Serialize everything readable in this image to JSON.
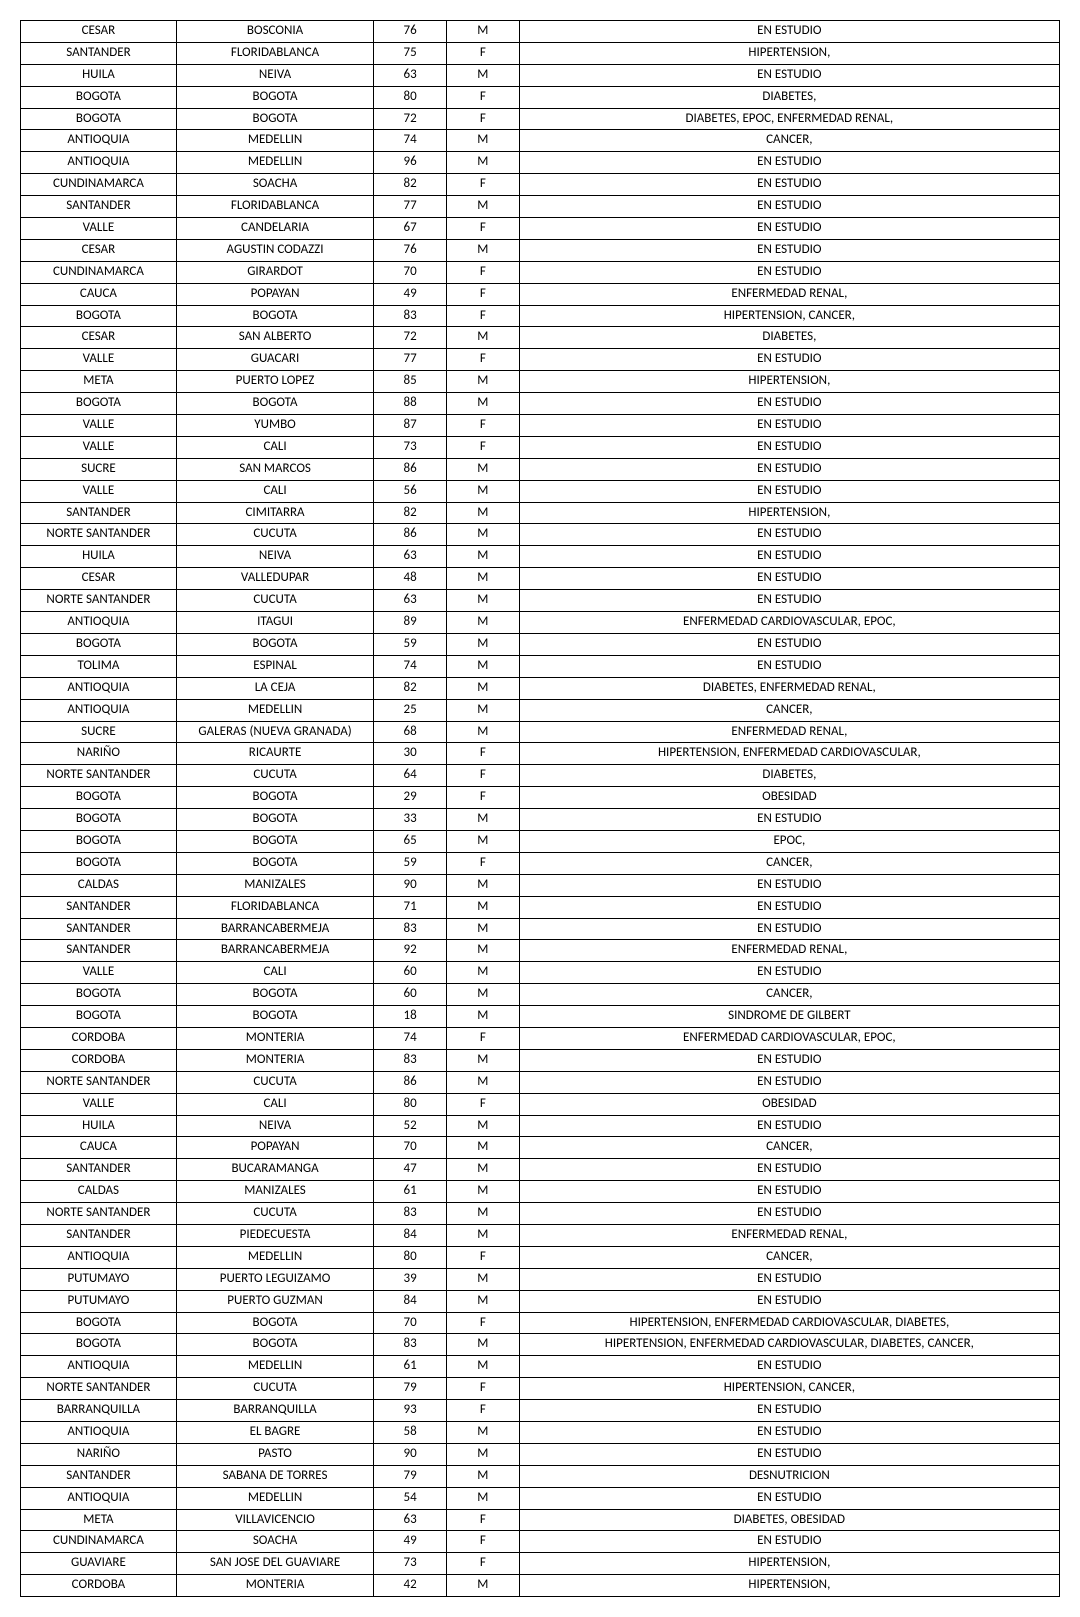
{
  "table": {
    "background_color": "#ffffff",
    "border_color": "#000000",
    "text_color": "#000000",
    "font_size": 13,
    "column_widths_pct": [
      15,
      19,
      7,
      7,
      52
    ],
    "column_align": [
      "center",
      "center",
      "center",
      "center",
      "center"
    ],
    "rows": [
      [
        "CESAR",
        "BOSCONIA",
        "76",
        "M",
        "EN ESTUDIO"
      ],
      [
        "SANTANDER",
        "FLORIDABLANCA",
        "75",
        "F",
        "HIPERTENSION,"
      ],
      [
        "HUILA",
        "NEIVA",
        "63",
        "M",
        "EN ESTUDIO"
      ],
      [
        "BOGOTA",
        "BOGOTA",
        "80",
        "F",
        "DIABETES,"
      ],
      [
        "BOGOTA",
        "BOGOTA",
        "72",
        "F",
        "DIABETES, EPOC, ENFERMEDAD RENAL,"
      ],
      [
        "ANTIOQUIA",
        "MEDELLIN",
        "74",
        "M",
        "CANCER,"
      ],
      [
        "ANTIOQUIA",
        "MEDELLIN",
        "96",
        "M",
        "EN ESTUDIO"
      ],
      [
        "CUNDINAMARCA",
        "SOACHA",
        "82",
        "F",
        "EN ESTUDIO"
      ],
      [
        "SANTANDER",
        "FLORIDABLANCA",
        "77",
        "M",
        "EN ESTUDIO"
      ],
      [
        "VALLE",
        "CANDELARIA",
        "67",
        "F",
        "EN ESTUDIO"
      ],
      [
        "CESAR",
        "AGUSTIN CODAZZI",
        "76",
        "M",
        "EN ESTUDIO"
      ],
      [
        "CUNDINAMARCA",
        "GIRARDOT",
        "70",
        "F",
        "EN ESTUDIO"
      ],
      [
        "CAUCA",
        "POPAYAN",
        "49",
        "F",
        "ENFERMEDAD RENAL,"
      ],
      [
        "BOGOTA",
        "BOGOTA",
        "83",
        "F",
        "HIPERTENSION, CANCER,"
      ],
      [
        "CESAR",
        "SAN ALBERTO",
        "72",
        "M",
        "DIABETES,"
      ],
      [
        "VALLE",
        "GUACARI",
        "77",
        "F",
        "EN ESTUDIO"
      ],
      [
        "META",
        "PUERTO LOPEZ",
        "85",
        "M",
        "HIPERTENSION,"
      ],
      [
        "BOGOTA",
        "BOGOTA",
        "88",
        "M",
        "EN ESTUDIO"
      ],
      [
        "VALLE",
        "YUMBO",
        "87",
        "F",
        "EN ESTUDIO"
      ],
      [
        "VALLE",
        "CALI",
        "73",
        "F",
        "EN ESTUDIO"
      ],
      [
        "SUCRE",
        "SAN MARCOS",
        "86",
        "M",
        "EN ESTUDIO"
      ],
      [
        "VALLE",
        "CALI",
        "56",
        "M",
        "EN ESTUDIO"
      ],
      [
        "SANTANDER",
        "CIMITARRA",
        "82",
        "M",
        "HIPERTENSION,"
      ],
      [
        "NORTE SANTANDER",
        "CUCUTA",
        "86",
        "M",
        "EN ESTUDIO"
      ],
      [
        "HUILA",
        "NEIVA",
        "63",
        "M",
        "EN ESTUDIO"
      ],
      [
        "CESAR",
        "VALLEDUPAR",
        "48",
        "M",
        "EN ESTUDIO"
      ],
      [
        "NORTE SANTANDER",
        "CUCUTA",
        "63",
        "M",
        "EN ESTUDIO"
      ],
      [
        "ANTIOQUIA",
        "ITAGUI",
        "89",
        "M",
        "ENFERMEDAD CARDIOVASCULAR, EPOC,"
      ],
      [
        "BOGOTA",
        "BOGOTA",
        "59",
        "M",
        "EN ESTUDIO"
      ],
      [
        "TOLIMA",
        "ESPINAL",
        "74",
        "M",
        "EN ESTUDIO"
      ],
      [
        "ANTIOQUIA",
        "LA CEJA",
        "82",
        "M",
        "DIABETES, ENFERMEDAD RENAL,"
      ],
      [
        "ANTIOQUIA",
        "MEDELLIN",
        "25",
        "M",
        "CANCER,"
      ],
      [
        "SUCRE",
        "GALERAS (NUEVA GRANADA)",
        "68",
        "M",
        "ENFERMEDAD RENAL,"
      ],
      [
        "NARIÑO",
        "RICAURTE",
        "30",
        "F",
        "HIPERTENSION, ENFERMEDAD CARDIOVASCULAR,"
      ],
      [
        "NORTE SANTANDER",
        "CUCUTA",
        "64",
        "F",
        "DIABETES,"
      ],
      [
        "BOGOTA",
        "BOGOTA",
        "29",
        "F",
        "OBESIDAD"
      ],
      [
        "BOGOTA",
        "BOGOTA",
        "33",
        "M",
        "EN ESTUDIO"
      ],
      [
        "BOGOTA",
        "BOGOTA",
        "65",
        "M",
        "EPOC,"
      ],
      [
        "BOGOTA",
        "BOGOTA",
        "59",
        "F",
        "CANCER,"
      ],
      [
        "CALDAS",
        "MANIZALES",
        "90",
        "M",
        "EN ESTUDIO"
      ],
      [
        "SANTANDER",
        "FLORIDABLANCA",
        "71",
        "M",
        "EN ESTUDIO"
      ],
      [
        "SANTANDER",
        "BARRANCABERMEJA",
        "83",
        "M",
        "EN ESTUDIO"
      ],
      [
        "SANTANDER",
        "BARRANCABERMEJA",
        "92",
        "M",
        "ENFERMEDAD RENAL,"
      ],
      [
        "VALLE",
        "CALI",
        "60",
        "M",
        "EN ESTUDIO"
      ],
      [
        "BOGOTA",
        "BOGOTA",
        "60",
        "M",
        "CANCER,"
      ],
      [
        "BOGOTA",
        "BOGOTA",
        "18",
        "M",
        "SINDROME DE GILBERT"
      ],
      [
        "CORDOBA",
        "MONTERIA",
        "74",
        "F",
        "ENFERMEDAD CARDIOVASCULAR, EPOC,"
      ],
      [
        "CORDOBA",
        "MONTERIA",
        "83",
        "M",
        "EN ESTUDIO"
      ],
      [
        "NORTE SANTANDER",
        "CUCUTA",
        "86",
        "M",
        "EN ESTUDIO"
      ],
      [
        "VALLE",
        "CALI",
        "80",
        "F",
        "OBESIDAD"
      ],
      [
        "HUILA",
        "NEIVA",
        "52",
        "M",
        "EN ESTUDIO"
      ],
      [
        "CAUCA",
        "POPAYAN",
        "70",
        "M",
        "CANCER,"
      ],
      [
        "SANTANDER",
        "BUCARAMANGA",
        "47",
        "M",
        "EN ESTUDIO"
      ],
      [
        "CALDAS",
        "MANIZALES",
        "61",
        "M",
        "EN ESTUDIO"
      ],
      [
        "NORTE SANTANDER",
        "CUCUTA",
        "83",
        "M",
        "EN ESTUDIO"
      ],
      [
        "SANTANDER",
        "PIEDECUESTA",
        "84",
        "M",
        "ENFERMEDAD RENAL,"
      ],
      [
        "ANTIOQUIA",
        "MEDELLIN",
        "80",
        "F",
        "CANCER,"
      ],
      [
        "PUTUMAYO",
        "PUERTO LEGUIZAMO",
        "39",
        "M",
        "EN ESTUDIO"
      ],
      [
        "PUTUMAYO",
        "PUERTO GUZMAN",
        "84",
        "M",
        "EN ESTUDIO"
      ],
      [
        "BOGOTA",
        "BOGOTA",
        "70",
        "F",
        "HIPERTENSION, ENFERMEDAD CARDIOVASCULAR, DIABETES,"
      ],
      [
        "BOGOTA",
        "BOGOTA",
        "83",
        "M",
        "HIPERTENSION, ENFERMEDAD CARDIOVASCULAR, DIABETES, CANCER,"
      ],
      [
        "ANTIOQUIA",
        "MEDELLIN",
        "61",
        "M",
        "EN ESTUDIO"
      ],
      [
        "NORTE SANTANDER",
        "CUCUTA",
        "79",
        "F",
        "HIPERTENSION, CANCER,"
      ],
      [
        "BARRANQUILLA",
        "BARRANQUILLA",
        "93",
        "F",
        "EN ESTUDIO"
      ],
      [
        "ANTIOQUIA",
        "EL BAGRE",
        "58",
        "M",
        "EN ESTUDIO"
      ],
      [
        "NARIÑO",
        "PASTO",
        "90",
        "M",
        "EN ESTUDIO"
      ],
      [
        "SANTANDER",
        "SABANA DE TORRES",
        "79",
        "M",
        "DESNUTRICION"
      ],
      [
        "ANTIOQUIA",
        "MEDELLIN",
        "54",
        "M",
        "EN ESTUDIO"
      ],
      [
        "META",
        "VILLAVICENCIO",
        "63",
        "F",
        "DIABETES, OBESIDAD"
      ],
      [
        "CUNDINAMARCA",
        "SOACHA",
        "49",
        "F",
        "EN ESTUDIO"
      ],
      [
        "GUAVIARE",
        "SAN JOSE DEL GUAVIARE",
        "73",
        "F",
        "HIPERTENSION,"
      ],
      [
        "CORDOBA",
        "MONTERIA",
        "42",
        "M",
        "HIPERTENSION,"
      ]
    ]
  }
}
